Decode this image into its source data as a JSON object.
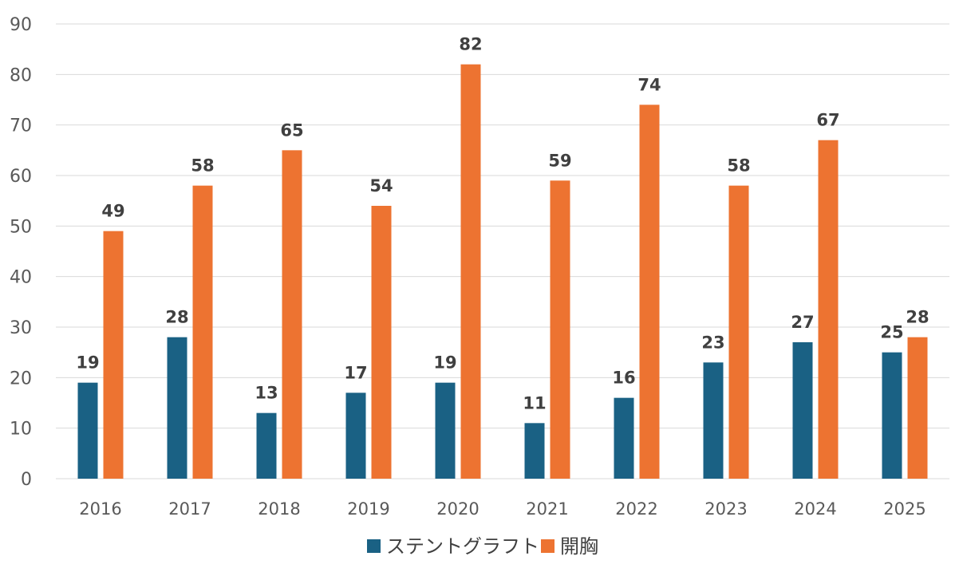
{
  "chart_data": {
    "type": "bar",
    "title": "",
    "xlabel": "",
    "ylabel": "",
    "categories": [
      "2016",
      "2017",
      "2018",
      "2019",
      "2020",
      "2021",
      "2022",
      "2023",
      "2024",
      "2025"
    ],
    "series": [
      {
        "name": "ステントグラフト",
        "color": "#1a6184",
        "values": [
          19,
          28,
          13,
          17,
          19,
          11,
          16,
          23,
          27,
          25
        ]
      },
      {
        "name": "開胸",
        "color": "#ed7331",
        "values": [
          49,
          58,
          65,
          54,
          82,
          59,
          74,
          58,
          67,
          28
        ]
      }
    ],
    "ylim": [
      0,
      90
    ],
    "yticks": [
      0,
      10,
      20,
      30,
      40,
      50,
      60,
      70,
      80,
      90
    ],
    "grid": true,
    "legend_position": "bottom",
    "data_labels": true
  }
}
